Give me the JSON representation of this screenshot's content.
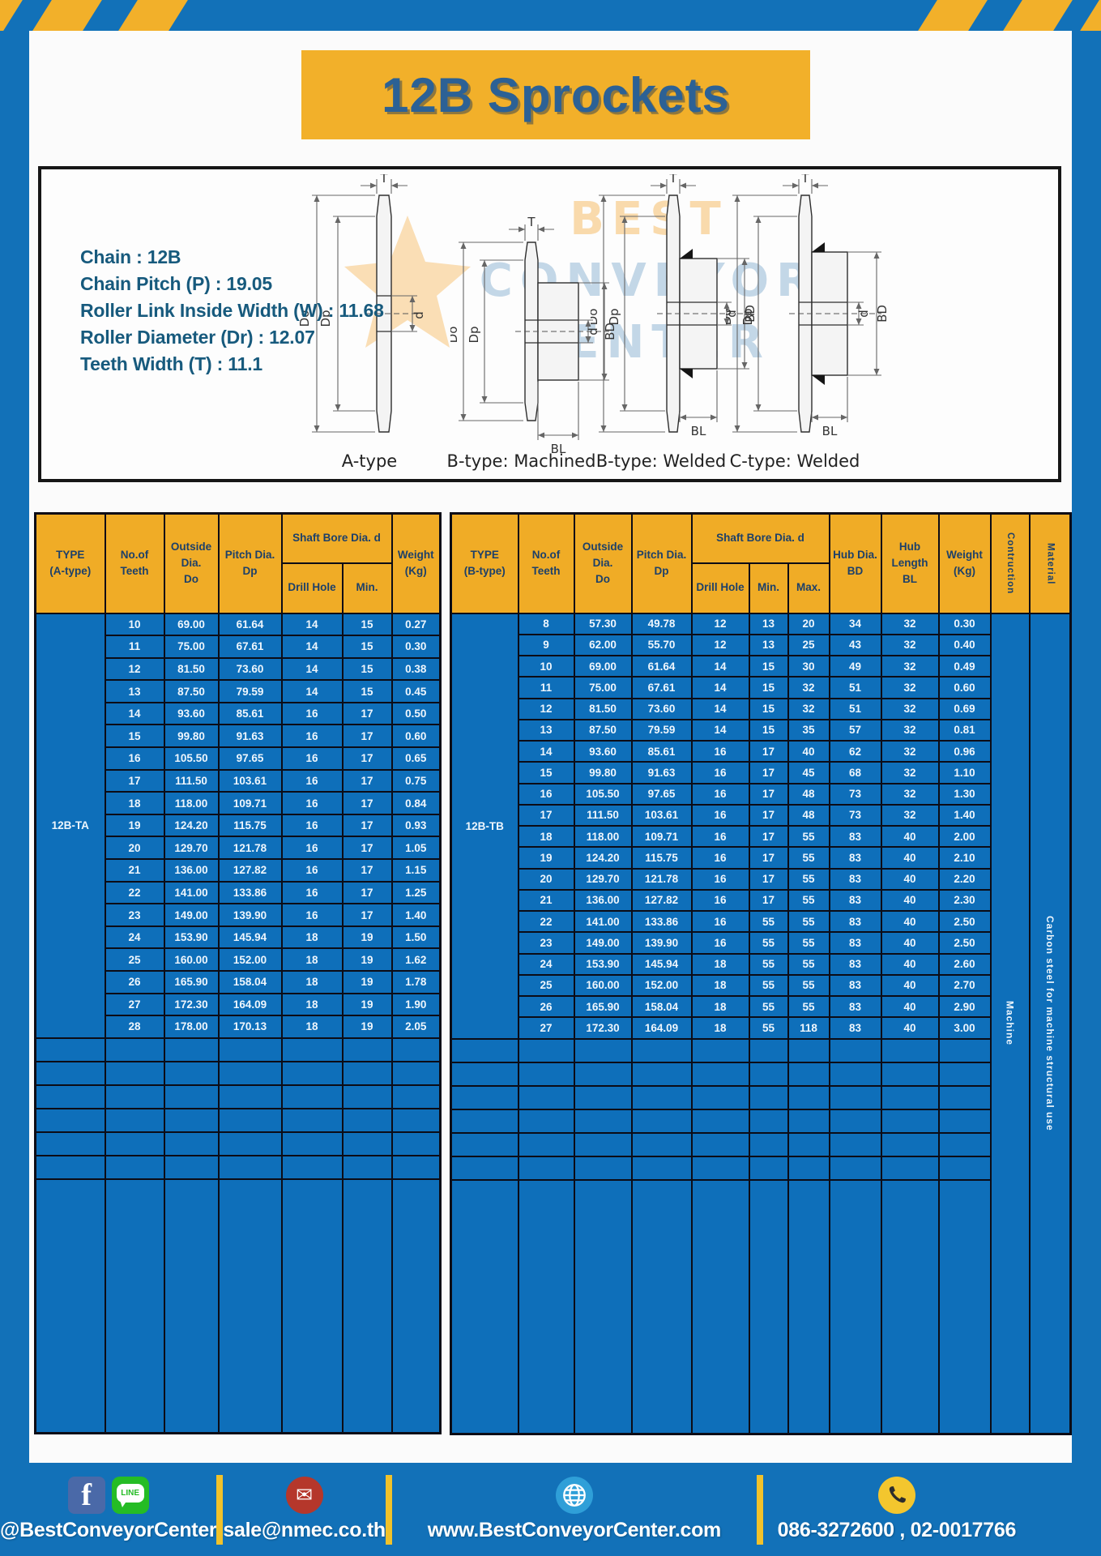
{
  "page": {
    "title": "12B Sprockets"
  },
  "specs": {
    "lines": [
      "Chain : 12B",
      "Chain Pitch (P) : 19.05",
      "Roller Link Inside Width (W) : 11.68",
      "Roller Diameter (Dr) : 12.07",
      "Teeth Width (T) : 11.1"
    ]
  },
  "diagram": {
    "labels": [
      "A-type",
      "B-type: Machined",
      "B-type: Welded",
      "C-type: Welded"
    ],
    "dims": {
      "t": "T",
      "outside": "Do",
      "pitch": "Dp",
      "bore": "d",
      "hub": "BD",
      "hub_len": "BL"
    },
    "watermark": [
      "BEST",
      "CONVEYOR",
      "CENTER"
    ]
  },
  "table_a": {
    "header": {
      "type": "TYPE\n(A-type)",
      "teeth": "No.of\nTeeth",
      "outside": "Outside\nDia.\nDo",
      "pitch": "Pitch Dia.\nDp",
      "shaft_bore": "Shaft Bore Dia. d",
      "drill": "Drill Hole",
      "min": "Min.",
      "weight": "Weight\n(Kg)"
    },
    "type_label": "12B-TA",
    "empty_rows": 6,
    "rows": [
      [
        "10",
        "69.00",
        "61.64",
        "14",
        "15",
        "0.27"
      ],
      [
        "11",
        "75.00",
        "67.61",
        "14",
        "15",
        "0.30"
      ],
      [
        "12",
        "81.50",
        "73.60",
        "14",
        "15",
        "0.38"
      ],
      [
        "13",
        "87.50",
        "79.59",
        "14",
        "15",
        "0.45"
      ],
      [
        "14",
        "93.60",
        "85.61",
        "16",
        "17",
        "0.50"
      ],
      [
        "15",
        "99.80",
        "91.63",
        "16",
        "17",
        "0.60"
      ],
      [
        "16",
        "105.50",
        "97.65",
        "16",
        "17",
        "0.65"
      ],
      [
        "17",
        "111.50",
        "103.61",
        "16",
        "17",
        "0.75"
      ],
      [
        "18",
        "118.00",
        "109.71",
        "16",
        "17",
        "0.84"
      ],
      [
        "19",
        "124.20",
        "115.75",
        "16",
        "17",
        "0.93"
      ],
      [
        "20",
        "129.70",
        "121.78",
        "16",
        "17",
        "1.05"
      ],
      [
        "21",
        "136.00",
        "127.82",
        "16",
        "17",
        "1.15"
      ],
      [
        "22",
        "141.00",
        "133.86",
        "16",
        "17",
        "1.25"
      ],
      [
        "23",
        "149.00",
        "139.90",
        "16",
        "17",
        "1.40"
      ],
      [
        "24",
        "153.90",
        "145.94",
        "18",
        "19",
        "1.50"
      ],
      [
        "25",
        "160.00",
        "152.00",
        "18",
        "19",
        "1.62"
      ],
      [
        "26",
        "165.90",
        "158.04",
        "18",
        "19",
        "1.78"
      ],
      [
        "27",
        "172.30",
        "164.09",
        "18",
        "19",
        "1.90"
      ],
      [
        "28",
        "178.00",
        "170.13",
        "18",
        "19",
        "2.05"
      ]
    ]
  },
  "table_b": {
    "header": {
      "type": "TYPE\n(B-type)",
      "teeth": "No.of\nTeeth",
      "outside": "Outside\nDia.\nDo",
      "pitch": "Pitch Dia.\nDp",
      "shaft_bore": "Shaft Bore Dia. d",
      "drill": "Drill Hole",
      "min": "Min.",
      "max": "Max.",
      "hub_dia": "Hub Dia.\nBD",
      "hub_len": "Hub\nLength\nBL",
      "weight": "Weight\n(Kg)",
      "construction": "Contruction",
      "material": "Material"
    },
    "type_label": "12B-TB",
    "construction_value": "Machine",
    "material_value": "Carbon steel for machine structural use",
    "empty_rows": 6,
    "rows": [
      [
        "8",
        "57.30",
        "49.78",
        "12",
        "13",
        "20",
        "34",
        "32",
        "0.30"
      ],
      [
        "9",
        "62.00",
        "55.70",
        "12",
        "13",
        "25",
        "43",
        "32",
        "0.40"
      ],
      [
        "10",
        "69.00",
        "61.64",
        "14",
        "15",
        "30",
        "49",
        "32",
        "0.49"
      ],
      [
        "11",
        "75.00",
        "67.61",
        "14",
        "15",
        "32",
        "51",
        "32",
        "0.60"
      ],
      [
        "12",
        "81.50",
        "73.60",
        "14",
        "15",
        "32",
        "51",
        "32",
        "0.69"
      ],
      [
        "13",
        "87.50",
        "79.59",
        "14",
        "15",
        "35",
        "57",
        "32",
        "0.81"
      ],
      [
        "14",
        "93.60",
        "85.61",
        "16",
        "17",
        "40",
        "62",
        "32",
        "0.96"
      ],
      [
        "15",
        "99.80",
        "91.63",
        "16",
        "17",
        "45",
        "68",
        "32",
        "1.10"
      ],
      [
        "16",
        "105.50",
        "97.65",
        "16",
        "17",
        "48",
        "73",
        "32",
        "1.30"
      ],
      [
        "17",
        "111.50",
        "103.61",
        "16",
        "17",
        "48",
        "73",
        "32",
        "1.40"
      ],
      [
        "18",
        "118.00",
        "109.71",
        "16",
        "17",
        "55",
        "83",
        "40",
        "2.00"
      ],
      [
        "19",
        "124.20",
        "115.75",
        "16",
        "17",
        "55",
        "83",
        "40",
        "2.10"
      ],
      [
        "20",
        "129.70",
        "121.78",
        "16",
        "17",
        "55",
        "83",
        "40",
        "2.20"
      ],
      [
        "21",
        "136.00",
        "127.82",
        "16",
        "17",
        "55",
        "83",
        "40",
        "2.30"
      ],
      [
        "22",
        "141.00",
        "133.86",
        "16",
        "55",
        "55",
        "83",
        "40",
        "2.50"
      ],
      [
        "23",
        "149.00",
        "139.90",
        "16",
        "55",
        "55",
        "83",
        "40",
        "2.50"
      ],
      [
        "24",
        "153.90",
        "145.94",
        "18",
        "55",
        "55",
        "83",
        "40",
        "2.60"
      ],
      [
        "25",
        "160.00",
        "152.00",
        "18",
        "55",
        "55",
        "83",
        "40",
        "2.70"
      ],
      [
        "26",
        "165.90",
        "158.04",
        "18",
        "55",
        "55",
        "83",
        "40",
        "2.90"
      ],
      [
        "27",
        "172.30",
        "164.09",
        "18",
        "55",
        "118",
        "83",
        "40",
        "3.00"
      ]
    ]
  },
  "footer": {
    "facebook_label": "f",
    "line_label": "LINE",
    "social": "@BestConveyorCenter",
    "email": "sale@nmec.co.th",
    "website": "www.BestConveyorCenter.com",
    "phone": "086-3272600 , 02-0017766"
  },
  "colors": {
    "frame_blue": "#1271b8",
    "table_blue": "#0e6fba",
    "accent_yellow": "#f2b02a",
    "header_yellow": "#f0ac26",
    "title_text": "#2c6195"
  }
}
